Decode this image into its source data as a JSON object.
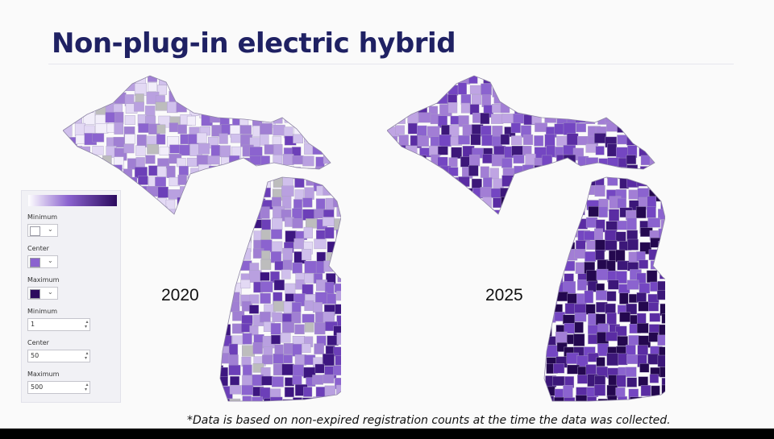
{
  "title": "Non-plug-in electric hybrid",
  "footnote": "*Data is based on non-expired registration counts at the time the data was collected.",
  "maps": [
    {
      "year": "2020",
      "shading": "medium"
    },
    {
      "year": "2025",
      "shading": "dark"
    }
  ],
  "legend": {
    "gradient_colors": [
      "#ffffff",
      "#8b63cf",
      "#2b0a5e"
    ],
    "minimum_color_label": "Minimum",
    "center_color_label": "Center",
    "maximum_color_label": "Maximum",
    "minimum_value_label": "Minimum",
    "center_value_label": "Center",
    "maximum_value_label": "Maximum",
    "minimum_value": "1",
    "center_value": "50",
    "maximum_value": "500"
  },
  "colors": {
    "title": "#1f2163",
    "no_data": "#bdbdbd",
    "min": "#ffffff",
    "center": "#8b63cf",
    "max": "#2b0a5e"
  }
}
